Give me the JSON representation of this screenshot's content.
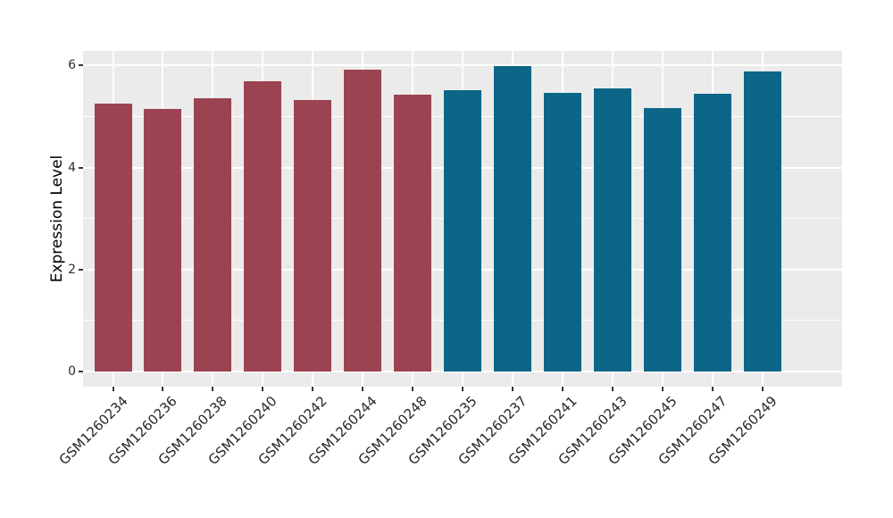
{
  "chart_data": {
    "type": "bar",
    "title": "",
    "xlabel": "",
    "ylabel": "Expression Level",
    "ylim": [
      0,
      6.3
    ],
    "y_major_ticks": [
      0,
      2,
      4,
      6
    ],
    "y_minor_ticks": [
      1,
      3,
      5
    ],
    "grid": "white-on-gray",
    "legend_position": "none",
    "categories": [
      "GSM1260234",
      "GSM1260236",
      "GSM1260238",
      "GSM1260240",
      "GSM1260242",
      "GSM1260244",
      "GSM1260248",
      "GSM1260235",
      "GSM1260237",
      "GSM1260241",
      "GSM1260243",
      "GSM1260245",
      "GSM1260247",
      "GSM1260249"
    ],
    "bars": [
      {
        "sample": "GSM1260234",
        "value": 5.25,
        "group": "red"
      },
      {
        "sample": "GSM1260236",
        "value": 5.15,
        "group": "red"
      },
      {
        "sample": "GSM1260238",
        "value": 5.36,
        "group": "red"
      },
      {
        "sample": "GSM1260240",
        "value": 5.69,
        "group": "red"
      },
      {
        "sample": "GSM1260242",
        "value": 5.32,
        "group": "red"
      },
      {
        "sample": "GSM1260244",
        "value": 5.92,
        "group": "red"
      },
      {
        "sample": "GSM1260248",
        "value": 5.43,
        "group": "red"
      },
      {
        "sample": "GSM1260235",
        "value": 5.52,
        "group": "teal"
      },
      {
        "sample": "GSM1260237",
        "value": 5.98,
        "group": "teal"
      },
      {
        "sample": "GSM1260241",
        "value": 5.46,
        "group": "teal"
      },
      {
        "sample": "GSM1260243",
        "value": 5.55,
        "group": "teal"
      },
      {
        "sample": "GSM1260245",
        "value": 5.16,
        "group": "teal"
      },
      {
        "sample": "GSM1260247",
        "value": 5.45,
        "group": "teal"
      },
      {
        "sample": "GSM1260249",
        "value": 5.89,
        "group": "teal"
      }
    ],
    "colors": {
      "red": "#9c4351",
      "teal": "#0c6687",
      "panel_background": "#ebebeb",
      "gridline": "#ffffff",
      "tick": "#333333",
      "axis_text": "#262626"
    }
  }
}
